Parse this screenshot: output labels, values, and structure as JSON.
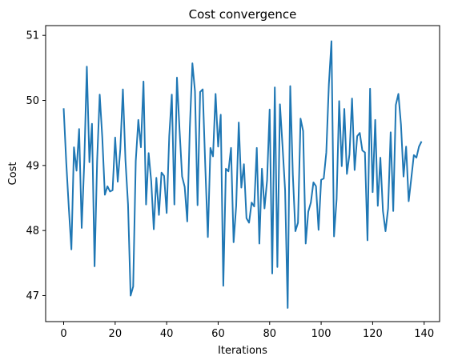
{
  "chart_data": {
    "type": "line",
    "title": "Cost convergence",
    "xlabel": "Iterations",
    "ylabel": "Cost",
    "xlim": [
      -7,
      146
    ],
    "ylim": [
      46.6,
      51.15
    ],
    "xticks": [
      0,
      20,
      40,
      60,
      80,
      100,
      120,
      140
    ],
    "yticks": [
      47,
      48,
      49,
      50,
      51
    ],
    "grid": false,
    "series": [
      {
        "color": "#1f77b4",
        "x": [
          0,
          1,
          2,
          3,
          4,
          5,
          6,
          7,
          8,
          9,
          10,
          11,
          12,
          13,
          14,
          15,
          16,
          17,
          18,
          19,
          20,
          21,
          22,
          23,
          24,
          25,
          26,
          27,
          28,
          29,
          30,
          31,
          32,
          33,
          34,
          35,
          36,
          37,
          38,
          39,
          40,
          41,
          42,
          43,
          44,
          45,
          46,
          47,
          48,
          49,
          50,
          51,
          52,
          53,
          54,
          55,
          56,
          57,
          58,
          59,
          60,
          61,
          62,
          63,
          64,
          65,
          66,
          67,
          68,
          69,
          70,
          71,
          72,
          73,
          74,
          75,
          76,
          77,
          78,
          79,
          80,
          81,
          82,
          83,
          84,
          85,
          86,
          87,
          88,
          89,
          90,
          91,
          92,
          93,
          94,
          95,
          96,
          97,
          98,
          99,
          100,
          101,
          102,
          103,
          104,
          105,
          106,
          107,
          108,
          109,
          110,
          111,
          112,
          113,
          114,
          115,
          116,
          117,
          118,
          119,
          120,
          121,
          122,
          123,
          124,
          125,
          126,
          127,
          128,
          129,
          130,
          131,
          132,
          133,
          134,
          135,
          136,
          137,
          138,
          139
        ],
        "y": [
          49.88,
          49.05,
          48.35,
          47.71,
          49.28,
          48.92,
          49.56,
          48.04,
          49.05,
          50.52,
          49.05,
          49.64,
          47.45,
          49.07,
          50.09,
          49.43,
          48.55,
          48.68,
          48.6,
          48.62,
          49.43,
          48.75,
          49.25,
          50.17,
          49.08,
          48.4,
          47.0,
          47.14,
          49.07,
          49.7,
          49.28,
          50.29,
          48.4,
          49.19,
          48.76,
          48.02,
          48.81,
          48.24,
          48.89,
          48.84,
          48.27,
          49.45,
          50.09,
          48.4,
          50.35,
          49.55,
          48.83,
          48.67,
          48.14,
          49.58,
          50.57,
          50.14,
          48.39,
          50.13,
          50.17,
          48.99,
          47.9,
          49.27,
          49.14,
          50.1,
          49.29,
          49.78,
          47.15,
          48.95,
          48.91,
          49.27,
          47.82,
          48.38,
          49.66,
          48.66,
          49.02,
          48.19,
          48.12,
          48.43,
          48.37,
          49.27,
          47.8,
          48.95,
          48.34,
          48.77,
          49.86,
          47.34,
          50.2,
          47.44,
          49.94,
          49.3,
          48.62,
          46.81,
          50.22,
          48.86,
          47.99,
          48.12,
          49.72,
          49.53,
          47.8,
          48.29,
          48.43,
          48.74,
          48.68,
          48.01,
          48.78,
          48.8,
          49.2,
          50.25,
          50.91,
          47.91,
          48.48,
          49.99,
          48.99,
          49.87,
          48.87,
          49.17,
          50.03,
          48.93,
          49.45,
          49.5,
          49.23,
          49.2,
          47.85,
          50.18,
          48.59,
          49.7,
          48.38,
          49.12,
          48.3,
          47.99,
          48.34,
          49.51,
          48.3,
          49.93,
          50.1,
          49.63,
          48.83,
          49.29,
          48.45,
          48.8,
          49.16,
          49.12,
          49.29,
          49.37
        ]
      }
    ]
  }
}
